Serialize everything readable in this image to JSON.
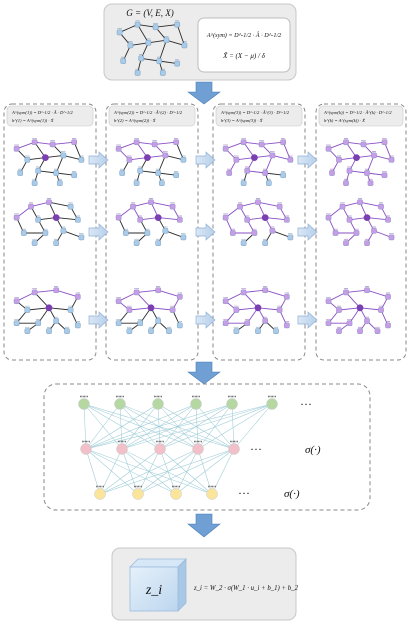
{
  "input_panel": {
    "title": "G = (V, E, X)",
    "formula_line1": "A^(sym) = D^-1/2 · Â · D^-1/2",
    "formula_line2": "X̃ = (X − μ) / δ"
  },
  "stage_panels": [
    {
      "line1": "A^(sym(1)) = D^-1/2 · Â · D^-1/2",
      "line2": "h^(1) = A^(sym(1)) · X̃"
    },
    {
      "line1": "A^(sym(2)) = D^-1/2 · Â^(2) · D^-1/2",
      "line2": "h^(2) = A^(sym(2)) · X̃"
    },
    {
      "line1": "A^(sym(3)) = D^-1/2 · Â^(3) · D^-1/2",
      "line2": "h^(3) = A^(sym(3)) · X̃"
    },
    {
      "line1": "A^(sym(k)) = D^-1/2 · Â^(k) · D^-1/2",
      "line2": "h^(k) = A^(sym(k)) · X̃"
    }
  ],
  "mlp": {
    "ellipsis_input": "···",
    "ellipsis_hidden": "···",
    "ellipsis_output": "···",
    "sigma_hidden": "σ(·)",
    "sigma_output": "σ(·)",
    "input_color": "#b5d7a2",
    "hidden_color": "#f2c0c9",
    "output_color": "#fbe59a"
  },
  "output_panel": {
    "embedding_label": "z_i",
    "formula": "z_i = W_2 · σ(W_1 · u_i + b_1) + b_2"
  },
  "colors": {
    "panel_fill": "#ececec",
    "arrow_blue": "#6f9fd3",
    "node_blue": "#a8cbe9",
    "node_purple": "#c89ce8",
    "node_dark_purple": "#7a3fb0"
  }
}
